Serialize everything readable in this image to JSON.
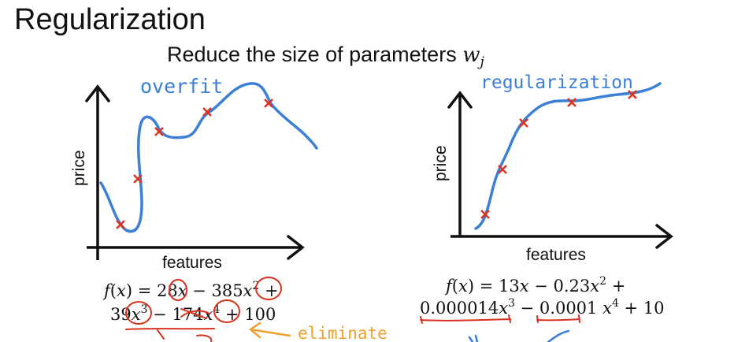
{
  "title": "Regularization",
  "subtitle": "Reduce the size of parameters ",
  "subtitle_param": "w",
  "subtitle_param_sub": "j",
  "left_plot": {
    "annotation": "overfit",
    "ylabel": "price",
    "xlabel": "features",
    "formula_line1": [
      "f",
      "(",
      "x",
      ") = 28",
      "x",
      " − 385",
      "x",
      "2",
      " +"
    ],
    "formula_line2": [
      "39",
      "x",
      "3",
      " − 174",
      "x",
      "4",
      " + 100"
    ],
    "eliminate_note": "eliminate"
  },
  "right_plot": {
    "annotation": "regularization",
    "ylabel": "price",
    "xlabel": "features",
    "formula_line1": [
      "f",
      "(",
      "x",
      ") = 13",
      "x",
      " − 0.23",
      "x",
      "2",
      " +"
    ],
    "formula_line2": [
      "0.000014",
      "x",
      "3",
      " − ",
      "0.0001",
      " ",
      "x",
      "4",
      " + 10"
    ]
  },
  "colors": {
    "curve": "#3b7fd6",
    "points": "#e0321f",
    "underline": "#d8321f",
    "note": "#f0a030"
  }
}
